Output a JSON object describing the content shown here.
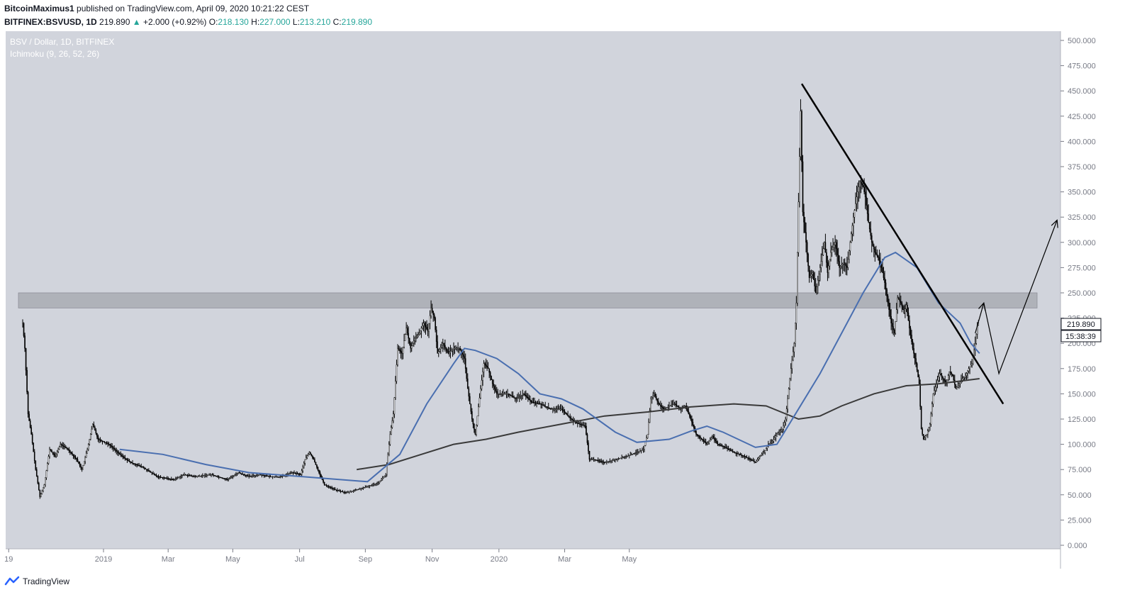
{
  "header": {
    "author": "BitcoinMaximus1",
    "published": "published on TradingView.com, April 09, 2020 10:21:22 CEST",
    "symbol": "BITFINEX:BSVUSD, 1D",
    "last": "219.890",
    "change_arrow": "▲",
    "change": "+2.000 (+0.92%)",
    "o_label": "O:",
    "o": "218.130",
    "h_label": "H:",
    "h": "227.000",
    "l_label": "L:",
    "l": "213.210",
    "c_label": "C:",
    "c": "219.890"
  },
  "chart_data": {
    "type": "candlestick",
    "title": "BSV / Dollar, 1D, BITFINEX",
    "indicator": "Ichimoku (9, 26, 52, 26)",
    "y_ticks": [
      "500.000",
      "475.000",
      "450.000",
      "425.000",
      "400.000",
      "375.000",
      "350.000",
      "325.000",
      "300.000",
      "275.000",
      "250.000",
      "225.000",
      "200.000",
      "175.000",
      "150.000",
      "125.000",
      "100.000",
      "75.000",
      "50.000",
      "25.000",
      "0.000"
    ],
    "ylim": [
      0,
      500
    ],
    "x_ticks": [
      "19",
      "2019",
      "Mar",
      "May",
      "Jul",
      "Sep",
      "Nov",
      "2020",
      "Mar",
      "May"
    ],
    "price_label": "219.890",
    "countdown_label": "15:38:39",
    "colors": {
      "background": "#d1d4dc",
      "candles": "#000000",
      "blue_line": "#4a6fb0",
      "dark_line": "#3a3a3a",
      "zone": "#a9abb3"
    },
    "resistance_zone": [
      235,
      250
    ],
    "price_path": [
      {
        "d": 0,
        "v": 220
      },
      {
        "d": 2,
        "v": 195
      },
      {
        "d": 5,
        "v": 130
      },
      {
        "d": 8,
        "v": 110
      },
      {
        "d": 12,
        "v": 75
      },
      {
        "d": 16,
        "v": 48
      },
      {
        "d": 20,
        "v": 60
      },
      {
        "d": 25,
        "v": 95
      },
      {
        "d": 30,
        "v": 88
      },
      {
        "d": 35,
        "v": 100
      },
      {
        "d": 42,
        "v": 95
      },
      {
        "d": 50,
        "v": 85
      },
      {
        "d": 55,
        "v": 75
      },
      {
        "d": 60,
        "v": 95
      },
      {
        "d": 65,
        "v": 120
      },
      {
        "d": 70,
        "v": 105
      },
      {
        "d": 80,
        "v": 100
      },
      {
        "d": 90,
        "v": 90
      },
      {
        "d": 100,
        "v": 82
      },
      {
        "d": 110,
        "v": 78
      },
      {
        "d": 125,
        "v": 68
      },
      {
        "d": 140,
        "v": 65
      },
      {
        "d": 150,
        "v": 70
      },
      {
        "d": 160,
        "v": 68
      },
      {
        "d": 175,
        "v": 70
      },
      {
        "d": 190,
        "v": 65
      },
      {
        "d": 200,
        "v": 72
      },
      {
        "d": 210,
        "v": 68
      },
      {
        "d": 220,
        "v": 70
      },
      {
        "d": 230,
        "v": 68
      },
      {
        "d": 240,
        "v": 68
      },
      {
        "d": 250,
        "v": 72
      },
      {
        "d": 258,
        "v": 70
      },
      {
        "d": 262,
        "v": 85
      },
      {
        "d": 266,
        "v": 92
      },
      {
        "d": 270,
        "v": 85
      },
      {
        "d": 275,
        "v": 72
      },
      {
        "d": 280,
        "v": 60
      },
      {
        "d": 290,
        "v": 55
      },
      {
        "d": 300,
        "v": 52
      },
      {
        "d": 310,
        "v": 55
      },
      {
        "d": 320,
        "v": 58
      },
      {
        "d": 330,
        "v": 62
      },
      {
        "d": 337,
        "v": 70
      },
      {
        "d": 341,
        "v": 110
      },
      {
        "d": 344,
        "v": 130
      },
      {
        "d": 348,
        "v": 195
      },
      {
        "d": 352,
        "v": 190
      },
      {
        "d": 356,
        "v": 215
      },
      {
        "d": 360,
        "v": 195
      },
      {
        "d": 364,
        "v": 205
      },
      {
        "d": 368,
        "v": 210
      },
      {
        "d": 372,
        "v": 220
      },
      {
        "d": 376,
        "v": 212
      },
      {
        "d": 379,
        "v": 235
      },
      {
        "d": 382,
        "v": 225
      },
      {
        "d": 385,
        "v": 190
      },
      {
        "d": 390,
        "v": 200
      },
      {
        "d": 395,
        "v": 190
      },
      {
        "d": 400,
        "v": 195
      },
      {
        "d": 405,
        "v": 195
      },
      {
        "d": 410,
        "v": 185
      },
      {
        "d": 413,
        "v": 155
      },
      {
        "d": 417,
        "v": 125
      },
      {
        "d": 420,
        "v": 110
      },
      {
        "d": 425,
        "v": 155
      },
      {
        "d": 428,
        "v": 180
      },
      {
        "d": 432,
        "v": 175
      },
      {
        "d": 436,
        "v": 160
      },
      {
        "d": 440,
        "v": 150
      },
      {
        "d": 445,
        "v": 150
      },
      {
        "d": 450,
        "v": 150
      },
      {
        "d": 458,
        "v": 145
      },
      {
        "d": 465,
        "v": 150
      },
      {
        "d": 472,
        "v": 142
      },
      {
        "d": 480,
        "v": 140
      },
      {
        "d": 490,
        "v": 135
      },
      {
        "d": 500,
        "v": 135
      },
      {
        "d": 506,
        "v": 128
      },
      {
        "d": 512,
        "v": 122
      },
      {
        "d": 517,
        "v": 120
      },
      {
        "d": 522,
        "v": 118
      },
      {
        "d": 526,
        "v": 85
      },
      {
        "d": 530,
        "v": 85
      },
      {
        "d": 540,
        "v": 82
      },
      {
        "d": 550,
        "v": 85
      },
      {
        "d": 560,
        "v": 88
      },
      {
        "d": 570,
        "v": 92
      },
      {
        "d": 576,
        "v": 95
      },
      {
        "d": 580,
        "v": 110
      },
      {
        "d": 583,
        "v": 145
      },
      {
        "d": 586,
        "v": 150
      },
      {
        "d": 590,
        "v": 140
      },
      {
        "d": 595,
        "v": 135
      },
      {
        "d": 600,
        "v": 138
      },
      {
        "d": 605,
        "v": 140
      },
      {
        "d": 610,
        "v": 135
      },
      {
        "d": 615,
        "v": 138
      },
      {
        "d": 620,
        "v": 125
      },
      {
        "d": 625,
        "v": 110
      },
      {
        "d": 630,
        "v": 105
      },
      {
        "d": 635,
        "v": 100
      },
      {
        "d": 640,
        "v": 108
      },
      {
        "d": 645,
        "v": 100
      },
      {
        "d": 650,
        "v": 98
      },
      {
        "d": 655,
        "v": 95
      },
      {
        "d": 660,
        "v": 92
      },
      {
        "d": 665,
        "v": 90
      },
      {
        "d": 670,
        "v": 88
      },
      {
        "d": 675,
        "v": 85
      },
      {
        "d": 680,
        "v": 82
      },
      {
        "d": 684,
        "v": 88
      },
      {
        "d": 688,
        "v": 92
      },
      {
        "d": 692,
        "v": 100
      },
      {
        "d": 696,
        "v": 103
      },
      {
        "d": 700,
        "v": 110
      },
      {
        "d": 705,
        "v": 115
      },
      {
        "d": 708,
        "v": 125
      },
      {
        "d": 710,
        "v": 145
      },
      {
        "d": 713,
        "v": 175
      },
      {
        "d": 716,
        "v": 200
      },
      {
        "d": 718,
        "v": 240
      },
      {
        "d": 720,
        "v": 340
      },
      {
        "d": 722,
        "v": 430
      },
      {
        "d": 724,
        "v": 330
      },
      {
        "d": 727,
        "v": 300
      },
      {
        "d": 730,
        "v": 265
      },
      {
        "d": 733,
        "v": 270
      },
      {
        "d": 736,
        "v": 250
      },
      {
        "d": 740,
        "v": 275
      },
      {
        "d": 744,
        "v": 300
      },
      {
        "d": 747,
        "v": 270
      },
      {
        "d": 750,
        "v": 290
      },
      {
        "d": 754,
        "v": 300
      },
      {
        "d": 758,
        "v": 275
      },
      {
        "d": 762,
        "v": 280
      },
      {
        "d": 765,
        "v": 275
      },
      {
        "d": 768,
        "v": 300
      },
      {
        "d": 771,
        "v": 325
      },
      {
        "d": 774,
        "v": 345
      },
      {
        "d": 777,
        "v": 360
      },
      {
        "d": 780,
        "v": 355
      },
      {
        "d": 782,
        "v": 345
      },
      {
        "d": 785,
        "v": 320
      },
      {
        "d": 788,
        "v": 300
      },
      {
        "d": 791,
        "v": 290
      },
      {
        "d": 794,
        "v": 285
      },
      {
        "d": 797,
        "v": 275
      },
      {
        "d": 800,
        "v": 260
      },
      {
        "d": 803,
        "v": 240
      },
      {
        "d": 806,
        "v": 220
      },
      {
        "d": 809,
        "v": 210
      },
      {
        "d": 812,
        "v": 245
      },
      {
        "d": 815,
        "v": 240
      },
      {
        "d": 818,
        "v": 230
      },
      {
        "d": 820,
        "v": 238
      },
      {
        "d": 823,
        "v": 215
      },
      {
        "d": 826,
        "v": 195
      },
      {
        "d": 829,
        "v": 180
      },
      {
        "d": 832,
        "v": 160
      },
      {
        "d": 834,
        "v": 115
      },
      {
        "d": 836,
        "v": 105
      },
      {
        "d": 839,
        "v": 110
      },
      {
        "d": 842,
        "v": 120
      },
      {
        "d": 845,
        "v": 150
      },
      {
        "d": 848,
        "v": 160
      },
      {
        "d": 851,
        "v": 170
      },
      {
        "d": 854,
        "v": 165
      },
      {
        "d": 857,
        "v": 160
      },
      {
        "d": 860,
        "v": 172
      },
      {
        "d": 863,
        "v": 168
      },
      {
        "d": 866,
        "v": 155
      },
      {
        "d": 869,
        "v": 160
      },
      {
        "d": 872,
        "v": 165
      },
      {
        "d": 875,
        "v": 168
      },
      {
        "d": 878,
        "v": 175
      },
      {
        "d": 881,
        "v": 180
      },
      {
        "d": 884,
        "v": 200
      },
      {
        "d": 886,
        "v": 218
      },
      {
        "d": 887,
        "v": 220
      }
    ],
    "blue_line": [
      {
        "d": 90,
        "v": 95
      },
      {
        "d": 130,
        "v": 90
      },
      {
        "d": 170,
        "v": 80
      },
      {
        "d": 210,
        "v": 72
      },
      {
        "d": 260,
        "v": 68
      },
      {
        "d": 320,
        "v": 63
      },
      {
        "d": 350,
        "v": 90
      },
      {
        "d": 375,
        "v": 140
      },
      {
        "d": 400,
        "v": 180
      },
      {
        "d": 410,
        "v": 195
      },
      {
        "d": 420,
        "v": 193
      },
      {
        "d": 440,
        "v": 185
      },
      {
        "d": 460,
        "v": 170
      },
      {
        "d": 480,
        "v": 150
      },
      {
        "d": 500,
        "v": 145
      },
      {
        "d": 520,
        "v": 135
      },
      {
        "d": 550,
        "v": 112
      },
      {
        "d": 570,
        "v": 102
      },
      {
        "d": 600,
        "v": 105
      },
      {
        "d": 620,
        "v": 113
      },
      {
        "d": 635,
        "v": 118
      },
      {
        "d": 650,
        "v": 112
      },
      {
        "d": 680,
        "v": 97
      },
      {
        "d": 700,
        "v": 100
      },
      {
        "d": 720,
        "v": 135
      },
      {
        "d": 740,
        "v": 170
      },
      {
        "d": 760,
        "v": 210
      },
      {
        "d": 780,
        "v": 250
      },
      {
        "d": 800,
        "v": 285
      },
      {
        "d": 810,
        "v": 290
      },
      {
        "d": 830,
        "v": 275
      },
      {
        "d": 850,
        "v": 240
      },
      {
        "d": 870,
        "v": 220
      },
      {
        "d": 880,
        "v": 200
      },
      {
        "d": 888,
        "v": 190
      }
    ],
    "dark_line": [
      {
        "d": 310,
        "v": 75
      },
      {
        "d": 340,
        "v": 80
      },
      {
        "d": 370,
        "v": 90
      },
      {
        "d": 400,
        "v": 100
      },
      {
        "d": 430,
        "v": 105
      },
      {
        "d": 460,
        "v": 112
      },
      {
        "d": 500,
        "v": 120
      },
      {
        "d": 540,
        "v": 128
      },
      {
        "d": 580,
        "v": 132
      },
      {
        "d": 620,
        "v": 137
      },
      {
        "d": 660,
        "v": 140
      },
      {
        "d": 690,
        "v": 138
      },
      {
        "d": 720,
        "v": 125
      },
      {
        "d": 740,
        "v": 128
      },
      {
        "d": 760,
        "v": 138
      },
      {
        "d": 790,
        "v": 150
      },
      {
        "d": 820,
        "v": 158
      },
      {
        "d": 850,
        "v": 160
      },
      {
        "d": 888,
        "v": 165
      }
    ],
    "trendline": [
      {
        "d": 723,
        "v": 457
      },
      {
        "d": 910,
        "v": 140
      }
    ],
    "projection": [
      {
        "d": 884,
        "v": 210
      },
      {
        "d": 892,
        "v": 240
      },
      {
        "d": 906,
        "v": 170
      },
      {
        "d": 960,
        "v": 322
      }
    ]
  },
  "footer": {
    "brand": "TradingView",
    "logo_icon": "tradingview-logo-icon"
  }
}
